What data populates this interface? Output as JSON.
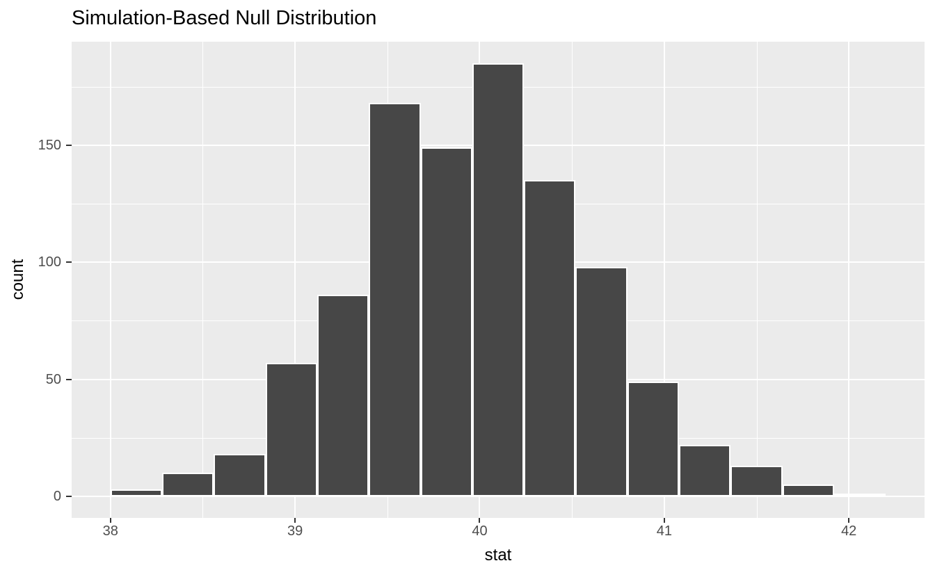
{
  "chart_data": {
    "type": "bar",
    "title": "Simulation-Based Null Distribution",
    "xlabel": "stat",
    "ylabel": "count",
    "bins": {
      "start": 38.0,
      "width": 0.28,
      "counts": [
        3,
        10,
        18,
        57,
        86,
        168,
        149,
        185,
        135,
        98,
        49,
        22,
        13,
        5,
        1
      ]
    },
    "x_ticks": [
      38,
      39,
      40,
      41,
      42
    ],
    "x_minor_ticks": [
      38.5,
      39.5,
      40.5,
      41.5
    ],
    "y_ticks": [
      0,
      50,
      100,
      150
    ],
    "y_minor_ticks": [
      25,
      75,
      125,
      175
    ],
    "x_domain": [
      37.79,
      42.41
    ],
    "y_domain": [
      -9.25,
      194.25
    ],
    "grid": "on",
    "legend": "none",
    "colors": {
      "bar_fill": "#474747",
      "bar_stroke": "#FFFFFF",
      "panel_bg": "#EBEBEB",
      "grid": "#FFFFFF",
      "tick_label": "#4D4D4D",
      "tick_mark": "#333333",
      "axis_title": "#000000",
      "title": "#000000",
      "plot_bg": "#FFFFFF"
    }
  }
}
